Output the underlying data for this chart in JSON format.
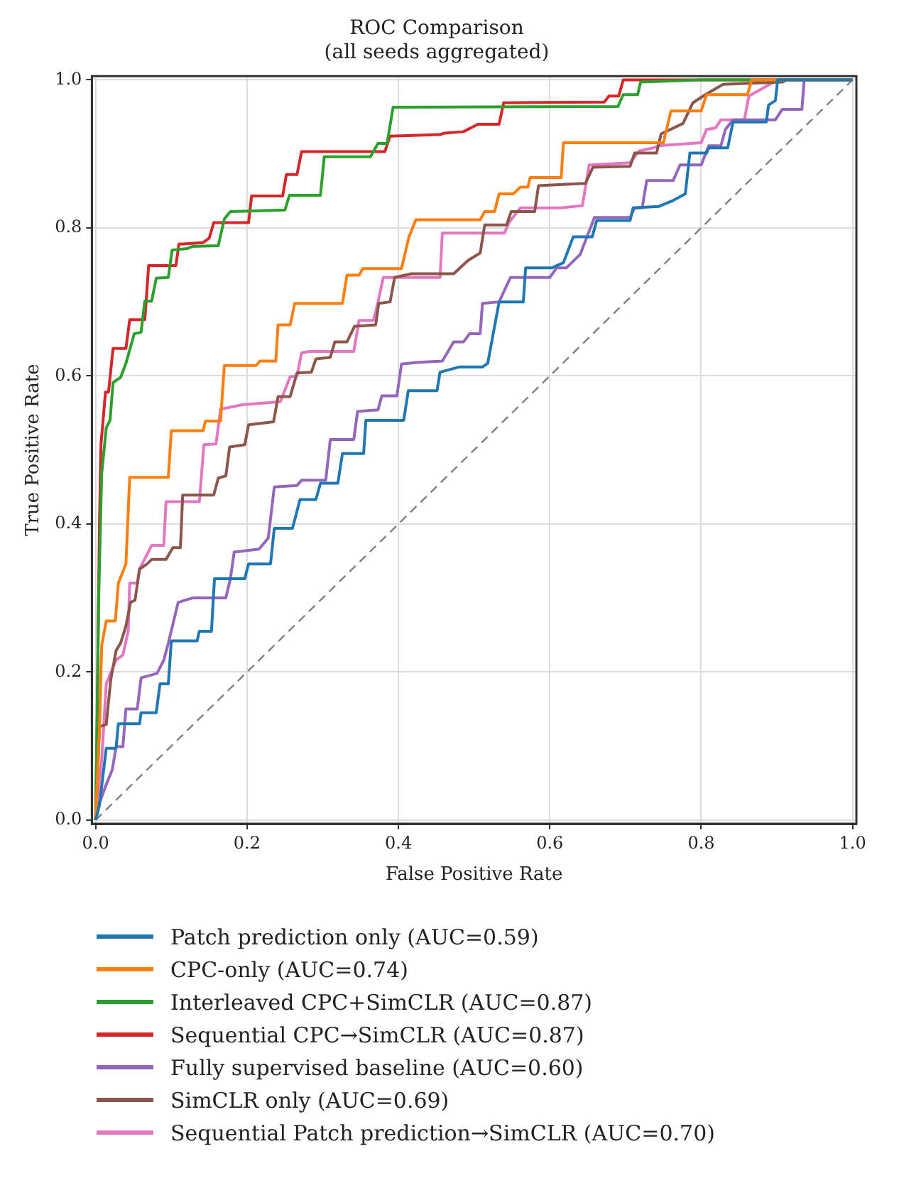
{
  "chart_data": {
    "type": "line",
    "title": "ROC Comparison",
    "subtitle": "(all seeds aggregated)",
    "xlabel": "False Positive Rate",
    "ylabel": "True Positive Rate",
    "xlim": [
      -0.005,
      1.005
    ],
    "ylim": [
      -0.005,
      1.005
    ],
    "xticks": [
      {
        "value": 0,
        "label": "0.0"
      },
      {
        "value": 0.2,
        "label": "0.2"
      },
      {
        "value": 0.4,
        "label": "0.4"
      },
      {
        "value": 0.6,
        "label": "0.6"
      },
      {
        "value": 0.8,
        "label": "0.8"
      },
      {
        "value": 1,
        "label": "1.0"
      }
    ],
    "yticks": [
      {
        "value": 0,
        "label": "0.0"
      },
      {
        "value": 0.2,
        "label": "0.2"
      },
      {
        "value": 0.4,
        "label": "0.4"
      },
      {
        "value": 0.6,
        "label": "0.6"
      },
      {
        "value": 0.8,
        "label": "0.8"
      },
      {
        "value": 1,
        "label": "1.0"
      }
    ],
    "grid": true,
    "legend": "bottom",
    "marker": "none",
    "line_style": "solid",
    "series": [
      {
        "name": "Patch prediction only (AUC=0.59)",
        "color": "#1f77b4",
        "x": [
          0,
          0.005,
          0.014,
          0.027,
          0.03,
          0.058,
          0.06,
          0.08,
          0.085,
          0.096,
          0.1,
          0.134,
          0.137,
          0.153,
          0.157,
          0.197,
          0.202,
          0.231,
          0.236,
          0.26,
          0.27,
          0.291,
          0.297,
          0.32,
          0.326,
          0.354,
          0.357,
          0.407,
          0.413,
          0.451,
          0.455,
          0.48,
          0.511,
          0.518,
          0.533,
          0.565,
          0.568,
          0.603,
          0.618,
          0.631,
          0.656,
          0.662,
          0.706,
          0.71,
          0.744,
          0.763,
          0.779,
          0.785,
          0.807,
          0.81,
          0.835,
          0.842,
          0.886,
          0.889,
          0.898,
          0.901,
          1
        ],
        "values": [
          0,
          0.02,
          0.097,
          0.097,
          0.13,
          0.13,
          0.145,
          0.145,
          0.184,
          0.184,
          0.242,
          0.242,
          0.255,
          0.255,
          0.326,
          0.326,
          0.346,
          0.346,
          0.394,
          0.394,
          0.433,
          0.433,
          0.455,
          0.455,
          0.495,
          0.495,
          0.54,
          0.54,
          0.58,
          0.58,
          0.605,
          0.612,
          0.612,
          0.617,
          0.7,
          0.7,
          0.746,
          0.746,
          0.753,
          0.788,
          0.788,
          0.81,
          0.81,
          0.827,
          0.829,
          0.837,
          0.846,
          0.901,
          0.901,
          0.908,
          0.908,
          0.943,
          0.943,
          0.966,
          0.972,
          1,
          1
        ]
      },
      {
        "name": "CPC-only (AUC=0.74)",
        "color": "#ff7f0e",
        "x": [
          0,
          0.005,
          0.008,
          0.014,
          0.026,
          0.03,
          0.04,
          0.045,
          0.096,
          0.1,
          0.142,
          0.145,
          0.165,
          0.17,
          0.212,
          0.217,
          0.238,
          0.241,
          0.257,
          0.263,
          0.326,
          0.332,
          0.348,
          0.353,
          0.404,
          0.414,
          0.423,
          0.508,
          0.514,
          0.527,
          0.533,
          0.552,
          0.561,
          0.571,
          0.574,
          0.615,
          0.618,
          0.75,
          0.76,
          0.8,
          0.807,
          0.861,
          0.867,
          1
        ],
        "values": [
          0,
          0.12,
          0.236,
          0.269,
          0.269,
          0.32,
          0.346,
          0.463,
          0.463,
          0.526,
          0.526,
          0.539,
          0.539,
          0.614,
          0.614,
          0.62,
          0.62,
          0.669,
          0.669,
          0.698,
          0.698,
          0.736,
          0.736,
          0.745,
          0.745,
          0.788,
          0.811,
          0.811,
          0.822,
          0.822,
          0.846,
          0.846,
          0.855,
          0.855,
          0.868,
          0.868,
          0.915,
          0.915,
          0.958,
          0.958,
          0.98,
          0.98,
          1,
          1
        ]
      },
      {
        "name": "Interleaved CPC+SimCLR (AUC=0.87)",
        "color": "#2ca02c",
        "x": [
          0,
          0.004,
          0.008,
          0.014,
          0.019,
          0.023,
          0.033,
          0.04,
          0.051,
          0.06,
          0.065,
          0.074,
          0.08,
          0.096,
          0.101,
          0.121,
          0.128,
          0.162,
          0.17,
          0.178,
          0.25,
          0.256,
          0.297,
          0.302,
          0.363,
          0.373,
          0.385,
          0.393,
          0.69,
          0.697,
          0.716,
          0.72,
          0.8,
          1
        ],
        "values": [
          0,
          0.3,
          0.468,
          0.53,
          0.54,
          0.591,
          0.598,
          0.617,
          0.657,
          0.659,
          0.701,
          0.701,
          0.732,
          0.733,
          0.77,
          0.772,
          0.775,
          0.776,
          0.812,
          0.822,
          0.824,
          0.844,
          0.844,
          0.896,
          0.896,
          0.914,
          0.914,
          0.963,
          0.964,
          0.98,
          0.98,
          0.997,
          1,
          1
        ]
      },
      {
        "name": "Sequential CPC→SimCLR (AUC=0.87)",
        "color": "#d62728",
        "x": [
          0,
          0.002,
          0.005,
          0.007,
          0.013,
          0.017,
          0.023,
          0.04,
          0.045,
          0.065,
          0.07,
          0.106,
          0.11,
          0.142,
          0.15,
          0.156,
          0.202,
          0.206,
          0.247,
          0.252,
          0.266,
          0.272,
          0.382,
          0.389,
          0.455,
          0.461,
          0.486,
          0.505,
          0.533,
          0.539,
          0.672,
          0.678,
          0.691,
          0.697,
          1
        ],
        "values": [
          0,
          0.13,
          0.4,
          0.507,
          0.578,
          0.578,
          0.637,
          0.637,
          0.676,
          0.676,
          0.749,
          0.749,
          0.778,
          0.78,
          0.786,
          0.807,
          0.807,
          0.843,
          0.843,
          0.872,
          0.872,
          0.903,
          0.903,
          0.924,
          0.926,
          0.928,
          0.93,
          0.94,
          0.94,
          0.969,
          0.97,
          0.978,
          0.978,
          1,
          1
        ]
      },
      {
        "name": "Fully supervised baseline (AUC=0.60)",
        "color": "#9467bd",
        "x": [
          0,
          0.005,
          0.014,
          0.022,
          0.027,
          0.036,
          0.04,
          0.055,
          0.06,
          0.081,
          0.09,
          0.096,
          0.109,
          0.128,
          0.172,
          0.178,
          0.183,
          0.216,
          0.228,
          0.236,
          0.266,
          0.272,
          0.304,
          0.31,
          0.341,
          0.346,
          0.373,
          0.378,
          0.398,
          0.404,
          0.423,
          0.458,
          0.473,
          0.486,
          0.494,
          0.508,
          0.511,
          0.533,
          0.548,
          0.6,
          0.609,
          0.622,
          0.64,
          0.659,
          0.706,
          0.712,
          0.722,
          0.728,
          0.763,
          0.772,
          0.8,
          0.81,
          0.826,
          0.832,
          0.842,
          0.898,
          0.907,
          0.933,
          0.936,
          1
        ],
        "values": [
          0,
          0.023,
          0.048,
          0.068,
          0.099,
          0.099,
          0.15,
          0.15,
          0.192,
          0.198,
          0.216,
          0.239,
          0.294,
          0.3,
          0.3,
          0.326,
          0.362,
          0.366,
          0.381,
          0.45,
          0.452,
          0.459,
          0.459,
          0.514,
          0.514,
          0.552,
          0.554,
          0.573,
          0.573,
          0.616,
          0.618,
          0.62,
          0.646,
          0.646,
          0.657,
          0.657,
          0.698,
          0.7,
          0.733,
          0.733,
          0.746,
          0.746,
          0.764,
          0.814,
          0.814,
          0.827,
          0.827,
          0.864,
          0.864,
          0.885,
          0.885,
          0.911,
          0.911,
          0.933,
          0.946,
          0.946,
          0.96,
          0.96,
          1,
          1
        ]
      },
      {
        "name": "SimCLR only (AUC=0.69)",
        "color": "#8c564b",
        "x": [
          0,
          0.005,
          0.014,
          0.02,
          0.027,
          0.033,
          0.04,
          0.046,
          0.052,
          0.058,
          0.068,
          0.074,
          0.093,
          0.102,
          0.112,
          0.115,
          0.156,
          0.162,
          0.172,
          0.177,
          0.197,
          0.202,
          0.235,
          0.241,
          0.257,
          0.266,
          0.285,
          0.291,
          0.31,
          0.316,
          0.332,
          0.342,
          0.37,
          0.374,
          0.389,
          0.395,
          0.417,
          0.473,
          0.492,
          0.508,
          0.514,
          0.543,
          0.549,
          0.58,
          0.585,
          0.647,
          0.657,
          0.706,
          0.712,
          0.741,
          0.747,
          0.776,
          0.789,
          0.807,
          0.829,
          0.907,
          0.914,
          1
        ],
        "values": [
          0,
          0.126,
          0.129,
          0.19,
          0.229,
          0.239,
          0.262,
          0.294,
          0.297,
          0.339,
          0.346,
          0.352,
          0.352,
          0.368,
          0.368,
          0.439,
          0.439,
          0.462,
          0.465,
          0.504,
          0.507,
          0.534,
          0.538,
          0.572,
          0.572,
          0.604,
          0.605,
          0.623,
          0.625,
          0.646,
          0.646,
          0.667,
          0.669,
          0.698,
          0.7,
          0.733,
          0.738,
          0.738,
          0.756,
          0.766,
          0.804,
          0.804,
          0.822,
          0.822,
          0.857,
          0.86,
          0.882,
          0.883,
          0.901,
          0.901,
          0.927,
          0.941,
          0.969,
          0.981,
          0.994,
          0.997,
          1,
          1
        ]
      },
      {
        "name": "Sequential Patch prediction→SimCLR (AUC=0.70)",
        "color": "#e377c2",
        "x": [
          0,
          0.002,
          0.008,
          0.014,
          0.027,
          0.036,
          0.043,
          0.045,
          0.055,
          0.058,
          0.071,
          0.074,
          0.09,
          0.093,
          0.137,
          0.143,
          0.159,
          0.165,
          0.194,
          0.244,
          0.257,
          0.266,
          0.272,
          0.282,
          0.341,
          0.348,
          0.367,
          0.372,
          0.38,
          0.455,
          0.458,
          0.54,
          0.546,
          0.561,
          0.615,
          0.643,
          0.652,
          0.706,
          0.718,
          0.737,
          0.743,
          0.8,
          0.807,
          0.819,
          0.826,
          0.857,
          0.863,
          0.901,
          1
        ],
        "values": [
          0,
          0.023,
          0.081,
          0.184,
          0.216,
          0.223,
          0.255,
          0.32,
          0.32,
          0.339,
          0.365,
          0.371,
          0.371,
          0.43,
          0.43,
          0.507,
          0.508,
          0.555,
          0.561,
          0.565,
          0.599,
          0.6,
          0.631,
          0.633,
          0.633,
          0.675,
          0.675,
          0.695,
          0.733,
          0.733,
          0.793,
          0.793,
          0.807,
          0.827,
          0.827,
          0.83,
          0.885,
          0.888,
          0.904,
          0.908,
          0.911,
          0.915,
          0.933,
          0.935,
          0.946,
          0.946,
          0.978,
          1,
          1
        ]
      },
      {
        "color": "#808080",
        "line_style": "dashed",
        "x": [
          0,
          1
        ],
        "values": [
          0,
          1
        ]
      }
    ]
  }
}
